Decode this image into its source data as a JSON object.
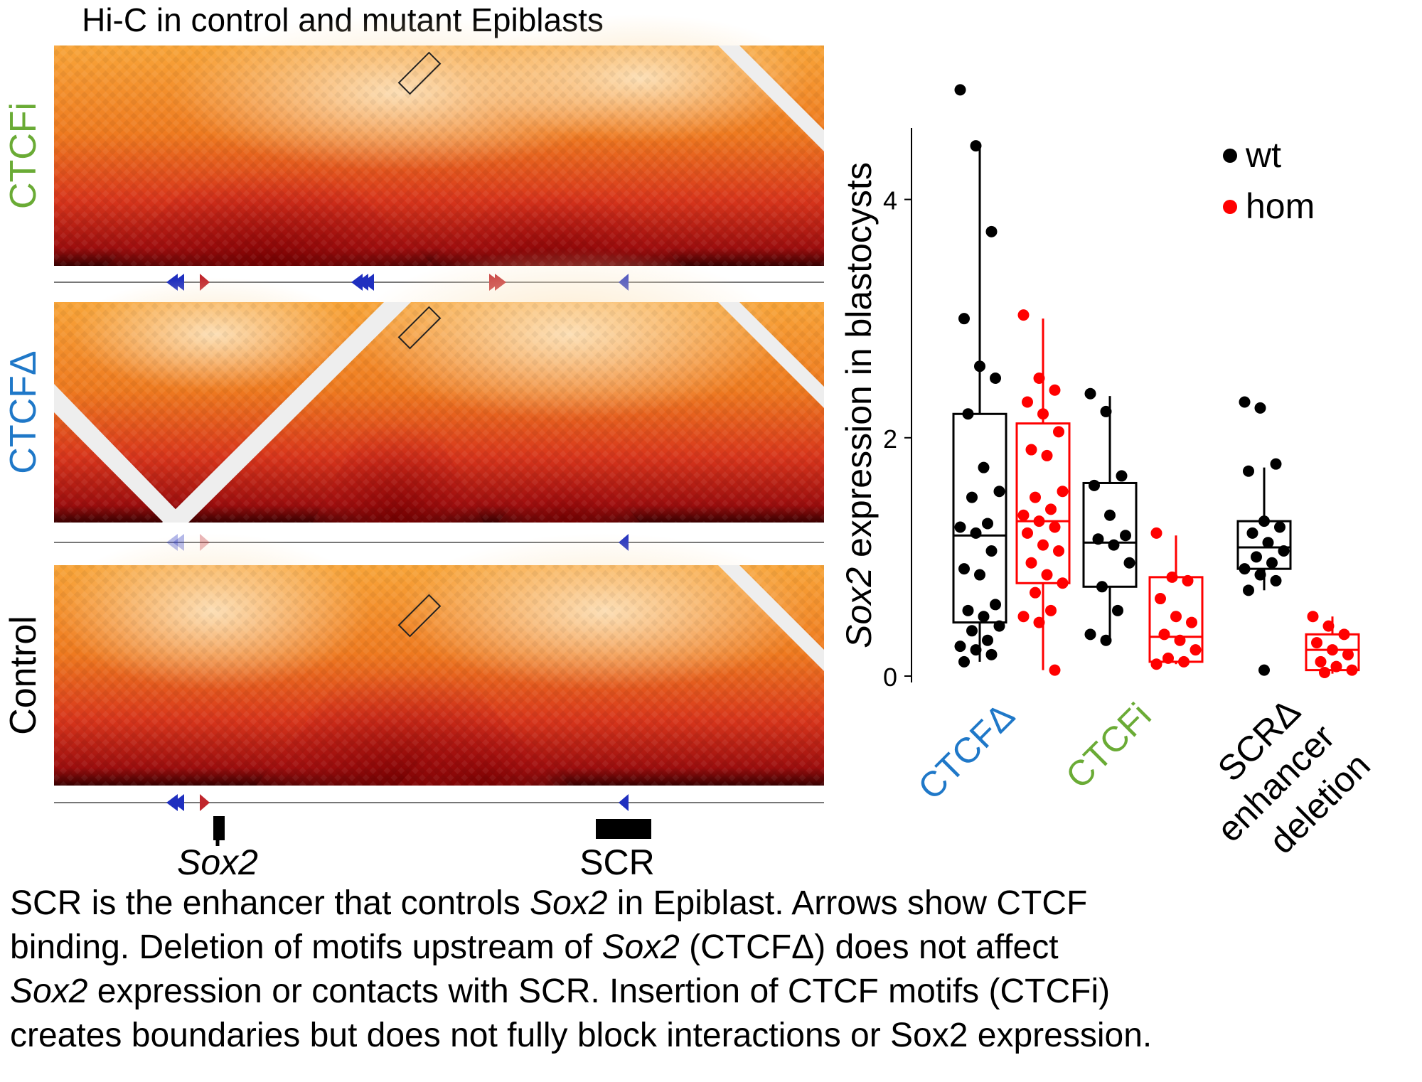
{
  "figure": {
    "hic_title": "Hi-C in control and mutant Epiblasts",
    "panels": [
      {
        "label": "CTCFi",
        "color": "#6aab35"
      },
      {
        "label": "CTCFΔ",
        "color": "#1f78c8"
      },
      {
        "label": "Control",
        "color": "#000000"
      }
    ],
    "gene_label": "Sox2",
    "enhancer_label": "SCR",
    "colors": {
      "ctcf_forward": "#c0262c",
      "ctcf_reverse": "#1f2fbf",
      "heat_high": "#2a0000",
      "heat_mid": "#e4541c",
      "heat_low": "#fde2b8"
    }
  },
  "chart_data": {
    "type": "box",
    "ylabel_italic": "Sox2",
    "ylabel_rest": " expression in blastocysts",
    "ylim": [
      0,
      4.6
    ],
    "yticks": [
      0,
      2,
      4
    ],
    "legend": {
      "position": "top-right",
      "entries": [
        {
          "name": "wt",
          "color": "#000000"
        },
        {
          "name": "hom",
          "color": "#ff0000"
        }
      ]
    },
    "groups": [
      {
        "label": "CTCFΔ",
        "label_color": "#1f78c8",
        "boxes": [
          {
            "series": "wt",
            "q1": 0.45,
            "median": 1.18,
            "q3": 2.2,
            "whisker_low": 0.12,
            "whisker_high": 4.45,
            "points": [
              4.92,
              4.45,
              3.73,
              3.0,
              2.6,
              2.5,
              2.2,
              1.75,
              1.55,
              1.5,
              1.28,
              1.25,
              1.2,
              1.05,
              0.9,
              0.85,
              0.6,
              0.55,
              0.5,
              0.42,
              0.38,
              0.3,
              0.25,
              0.22,
              0.18,
              0.12
            ]
          },
          {
            "series": "hom",
            "q1": 0.78,
            "median": 1.3,
            "q3": 2.12,
            "whisker_low": 0.05,
            "whisker_high": 3.0,
            "points": [
              3.03,
              2.5,
              2.4,
              2.3,
              2.2,
              2.05,
              1.9,
              1.85,
              1.55,
              1.5,
              1.4,
              1.35,
              1.3,
              1.25,
              1.2,
              1.1,
              1.05,
              0.95,
              0.85,
              0.78,
              0.7,
              0.55,
              0.5,
              0.45,
              0.05
            ]
          }
        ]
      },
      {
        "label": "CTCFi",
        "label_color": "#6aab35",
        "boxes": [
          {
            "series": "wt",
            "q1": 0.75,
            "median": 1.12,
            "q3": 1.62,
            "whisker_low": 0.3,
            "whisker_high": 2.35,
            "points": [
              2.37,
              2.22,
              1.68,
              1.6,
              1.35,
              1.18,
              1.15,
              1.1,
              0.95,
              0.75,
              0.55,
              0.35,
              0.3
            ]
          },
          {
            "series": "hom",
            "q1": 0.12,
            "median": 0.33,
            "q3": 0.83,
            "whisker_low": 0.1,
            "whisker_high": 1.18,
            "points": [
              1.2,
              0.83,
              0.8,
              0.65,
              0.5,
              0.45,
              0.35,
              0.3,
              0.22,
              0.15,
              0.12,
              0.1
            ]
          }
        ]
      },
      {
        "label_lines": [
          "SCRΔ",
          "enhancer",
          "deletion"
        ],
        "label_color": "#000000",
        "boxes": [
          {
            "series": "wt",
            "q1": 0.9,
            "median": 1.08,
            "q3": 1.3,
            "whisker_low": 0.72,
            "whisker_high": 1.75,
            "points": [
              2.3,
              2.25,
              1.78,
              1.72,
              1.3,
              1.25,
              1.2,
              1.12,
              1.05,
              1.0,
              0.95,
              0.9,
              0.85,
              0.8,
              0.72,
              0.05
            ]
          },
          {
            "series": "hom",
            "q1": 0.05,
            "median": 0.22,
            "q3": 0.35,
            "whisker_low": 0.02,
            "whisker_high": 0.5,
            "points": [
              0.5,
              0.42,
              0.35,
              0.28,
              0.22,
              0.18,
              0.12,
              0.08,
              0.05,
              0.03
            ]
          }
        ]
      }
    ]
  },
  "caption": {
    "l1_a": "SCR is the enhancer that controls ",
    "l1_em": "Sox2",
    "l1_b": " in Epiblast. Arrows show CTCF",
    "l2_a": "binding. Deletion of motifs upstream of ",
    "l2_em": "Sox2",
    "l2_b": " (CTCFΔ) does not affect",
    "l3_em": "Sox2",
    "l3_b": " expression or contacts with SCR. Insertion of CTCF motifs (CTCFi)",
    "l4": "creates boundaries but does not fully block interactions or Sox2 expression."
  }
}
